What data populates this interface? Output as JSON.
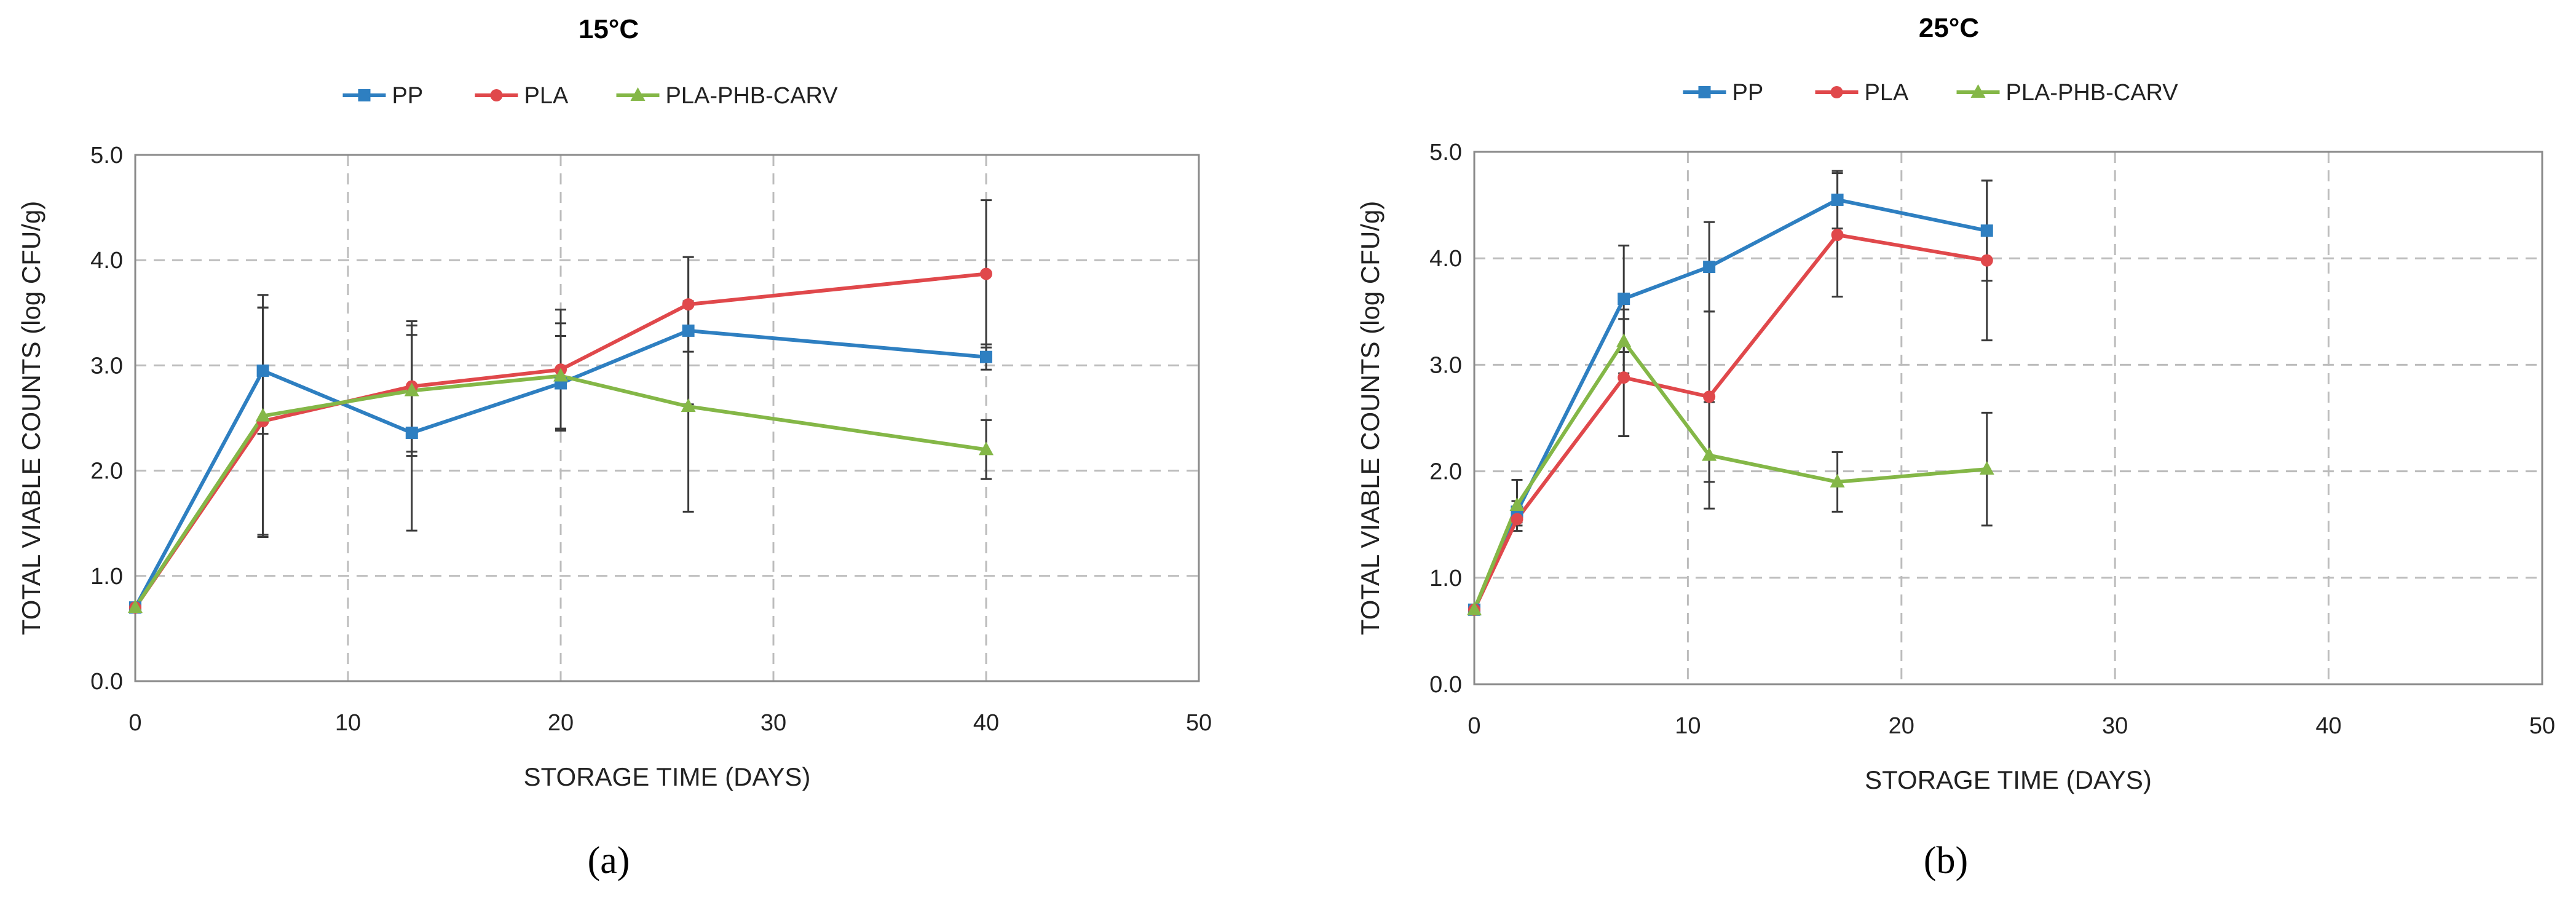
{
  "figure": {
    "panel_labels": [
      "(a)",
      "(b)"
    ]
  },
  "chart_data": [
    {
      "type": "line",
      "title": "15°C",
      "xlabel": "STORAGE TIME (DAYS)",
      "ylabel": "TOTAL VIABLE COUNTS (log CFU/g)",
      "xlim": [
        0,
        50
      ],
      "ylim": [
        0,
        5
      ],
      "xticks": [
        0,
        10,
        20,
        30,
        40,
        50
      ],
      "yticks": [
        0,
        1,
        2,
        3,
        4,
        5
      ],
      "xtick_labels": [
        "0",
        "10",
        "20",
        "30",
        "40",
        "50"
      ],
      "ytick_labels": [
        "0.0",
        "1.0",
        "2.0",
        "3.0",
        "4.0",
        "5.0"
      ],
      "grid": true,
      "legend_position": "top-center",
      "series": [
        {
          "name": "PP",
          "color": "#2e7fc1",
          "marker": "square",
          "x": [
            0,
            6,
            13,
            20,
            26,
            40
          ],
          "y": [
            0.7,
            2.95,
            2.36,
            2.83,
            3.33,
            3.08
          ],
          "err": [
            0.03,
            0.6,
            0.93,
            0.45,
            0.7,
            0.12
          ]
        },
        {
          "name": "PLA",
          "color": "#e0484b",
          "marker": "circle",
          "x": [
            0,
            6,
            13,
            20,
            26,
            40
          ],
          "y": [
            0.7,
            2.47,
            2.8,
            2.96,
            3.58,
            3.87
          ],
          "err": [
            0.03,
            1.08,
            0.62,
            0.57,
            0.45,
            0.7
          ]
        },
        {
          "name": "PLA-PHB-CARV",
          "color": "#84b747",
          "marker": "triangle",
          "x": [
            0,
            6,
            13,
            20,
            26,
            40
          ],
          "y": [
            0.7,
            2.52,
            2.76,
            2.9,
            2.61,
            2.2
          ],
          "err": [
            0.03,
            1.15,
            0.62,
            0.5,
            1.0,
            0.28
          ]
        }
      ]
    },
    {
      "type": "line",
      "title": "25°C",
      "xlabel": "STORAGE TIME (DAYS)",
      "ylabel": "TOTAL VIABLE COUNTS (log CFU/g)",
      "xlim": [
        0,
        50
      ],
      "ylim": [
        0,
        5
      ],
      "xticks": [
        0,
        10,
        20,
        30,
        40,
        50
      ],
      "yticks": [
        0,
        1,
        2,
        3,
        4,
        5
      ],
      "xtick_labels": [
        "0",
        "10",
        "20",
        "30",
        "40",
        "50"
      ],
      "ytick_labels": [
        "0.0",
        "1.0",
        "2.0",
        "3.0",
        "4.0",
        "5.0"
      ],
      "grid": true,
      "legend_position": "top-center",
      "series": [
        {
          "name": "PP",
          "color": "#2e7fc1",
          "marker": "square",
          "x": [
            0,
            2,
            7,
            11,
            17,
            24
          ],
          "y": [
            0.7,
            1.62,
            3.62,
            3.92,
            4.55,
            4.26
          ],
          "err": [
            0.03,
            0.1,
            0.5,
            0.42,
            0.27,
            0.47
          ]
        },
        {
          "name": "PLA",
          "color": "#e0484b",
          "marker": "circle",
          "x": [
            0,
            2,
            7,
            11,
            17,
            24
          ],
          "y": [
            0.7,
            1.55,
            2.88,
            2.7,
            4.22,
            3.98
          ],
          "err": [
            0.03,
            0.06,
            0.55,
            0.8,
            0.58,
            0.75
          ]
        },
        {
          "name": "PLA-PHB-CARV",
          "color": "#84b747",
          "marker": "triangle",
          "x": [
            0,
            2,
            7,
            11,
            17,
            24
          ],
          "y": [
            0.7,
            1.68,
            3.22,
            2.15,
            1.9,
            2.02
          ],
          "err": [
            0.03,
            0.24,
            0.3,
            0.5,
            0.28,
            0.53
          ]
        }
      ]
    }
  ]
}
